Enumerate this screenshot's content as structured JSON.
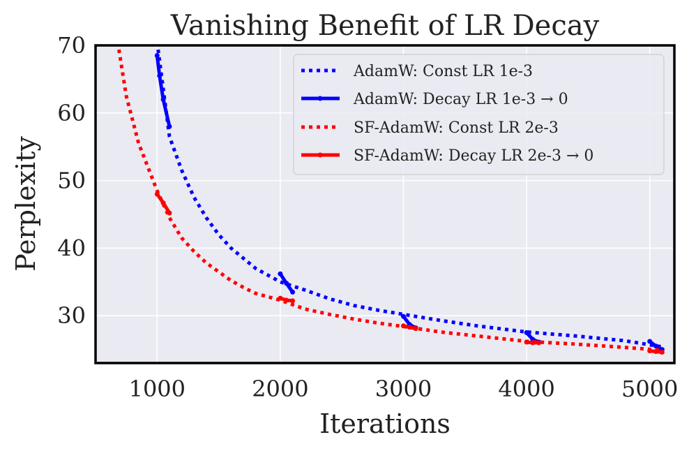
{
  "chart_data": {
    "type": "line",
    "title": "Vanishing Benefit of LR Decay",
    "xlabel": "Iterations",
    "ylabel": "Perplexity",
    "xlim": [
      500,
      5200
    ],
    "ylim": [
      23,
      70
    ],
    "xticks": [
      1000,
      2000,
      3000,
      4000,
      5000
    ],
    "xtick_labels": [
      "1000",
      "2000",
      "3000",
      "4000",
      "5000"
    ],
    "yticks": [
      30,
      40,
      50,
      60,
      70
    ],
    "ytick_labels": [
      "30",
      "40",
      "50",
      "60",
      "70"
    ],
    "grid": true,
    "legend_position": "top-right",
    "series": [
      {
        "name": "AdamW: Const LR 1e-3",
        "color": "#0000ff",
        "style": "dotted",
        "x": [
          1000,
          1100,
          1200,
          1300,
          1400,
          1500,
          1600,
          1700,
          1800,
          1900,
          2000,
          2200,
          2400,
          2600,
          2800,
          3000,
          3300,
          3600,
          4000,
          4400,
          4800,
          5100
        ],
        "y": [
          70.5,
          56.5,
          51.5,
          47.5,
          44.5,
          42.0,
          40.0,
          38.5,
          37.0,
          36.0,
          35.0,
          33.8,
          32.5,
          31.5,
          30.8,
          30.2,
          29.3,
          28.5,
          27.6,
          27.0,
          26.3,
          25.4
        ]
      },
      {
        "name": "AdamW: Decay LR 1e-3 → 0",
        "color": "#0000ff",
        "style": "solid",
        "segments": [
          {
            "x": [
              1000,
              1020,
              1050,
              1100
            ],
            "y": [
              68.5,
              65.5,
              62.0,
              58.0
            ]
          },
          {
            "x": [
              2000,
              2050,
              2100
            ],
            "y": [
              36.2,
              34.8,
              33.5
            ]
          },
          {
            "x": [
              3000,
              3050,
              3100
            ],
            "y": [
              29.9,
              28.7,
              28.2
            ]
          },
          {
            "x": [
              4000,
              4050,
              4100
            ],
            "y": [
              27.5,
              26.5,
              26.1
            ]
          },
          {
            "x": [
              5000,
              5050,
              5100
            ],
            "y": [
              26.2,
              25.5,
              25.0
            ]
          }
        ]
      },
      {
        "name": "SF-AdamW: Const LR 2e-3",
        "color": "#ff0000",
        "style": "dotted",
        "x": [
          680,
          750,
          850,
          1000,
          1100,
          1200,
          1300,
          1400,
          1500,
          1600,
          1700,
          1800,
          1900,
          2000,
          2200,
          2400,
          2600,
          2800,
          3000,
          3300,
          3600,
          4000,
          4400,
          4800,
          5100
        ],
        "y": [
          70.5,
          62.5,
          55.5,
          48.5,
          44.5,
          41.5,
          39.5,
          37.8,
          36.5,
          35.2,
          34.2,
          33.3,
          32.8,
          32.3,
          31.0,
          30.2,
          29.5,
          28.9,
          28.4,
          27.6,
          27.0,
          26.2,
          25.8,
          25.3,
          24.9
        ]
      },
      {
        "name": "SF-AdamW: Decay LR 2e-3 → 0",
        "color": "#ff0000",
        "style": "solid",
        "segments": [
          {
            "x": [
              1000,
              1050,
              1100
            ],
            "y": [
              48.0,
              46.7,
              45.2
            ]
          },
          {
            "x": [
              2000,
              2050,
              2100
            ],
            "y": [
              32.6,
              32.3,
              32.2
            ]
          },
          {
            "x": [
              3000,
              3050,
              3100
            ],
            "y": [
              28.5,
              28.3,
              28.1
            ]
          },
          {
            "x": [
              4000,
              4050,
              4100
            ],
            "y": [
              26.1,
              26.0,
              26.0
            ]
          },
          {
            "x": [
              5000,
              5050,
              5100
            ],
            "y": [
              24.8,
              24.7,
              24.6
            ]
          }
        ]
      }
    ]
  }
}
